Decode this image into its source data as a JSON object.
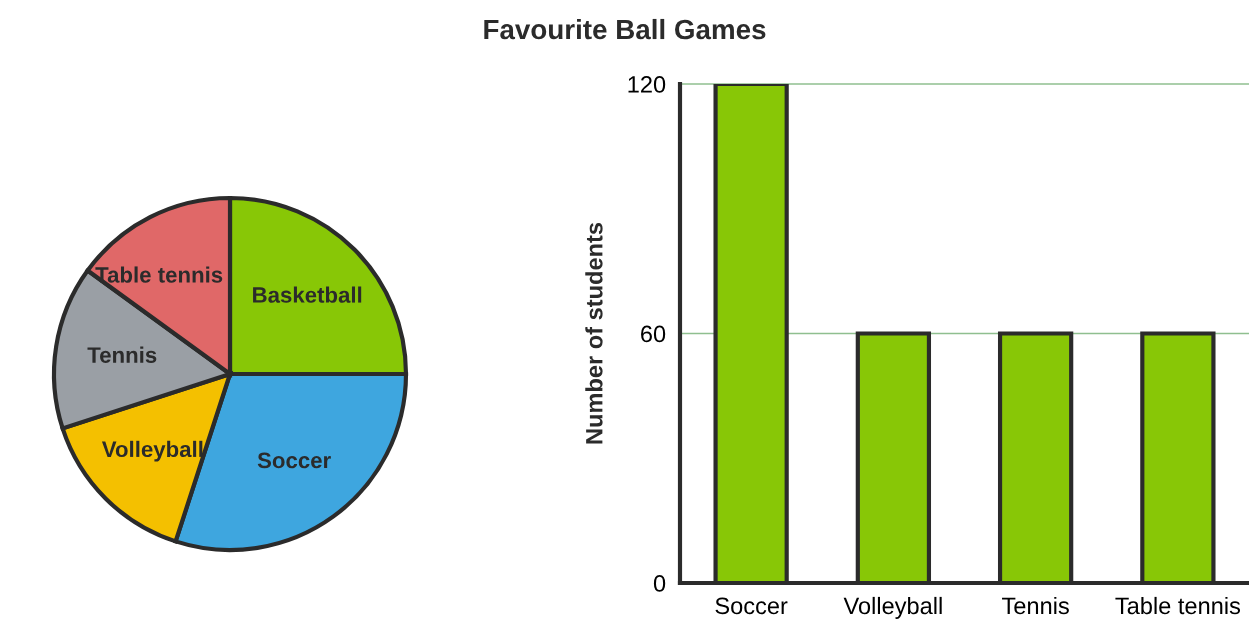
{
  "chart_data": [
    {
      "type": "pie",
      "title": "Favourite Ball Games",
      "categories": [
        "Basketball",
        "Soccer",
        "Volleyball",
        "Tennis",
        "Table tennis"
      ],
      "values": [
        25,
        30,
        15,
        15,
        15
      ],
      "colors": [
        "#88c706",
        "#3ea6df",
        "#f4c000",
        "#9a9fa5",
        "#e06868"
      ]
    },
    {
      "type": "bar",
      "ylabel": "Number of students",
      "categories": [
        "Soccer",
        "Volleyball",
        "Tennis",
        "Table tennis"
      ],
      "values": [
        120,
        60,
        60,
        60
      ],
      "color": "#88c706",
      "ylim": [
        0,
        120
      ],
      "yticks": [
        0,
        60,
        120
      ],
      "ref_lines": [
        {
          "axis": "y",
          "value": 60,
          "color": "#8fbf8f"
        },
        {
          "axis": "y",
          "value": 120,
          "color": "#8fbf8f"
        }
      ]
    }
  ]
}
